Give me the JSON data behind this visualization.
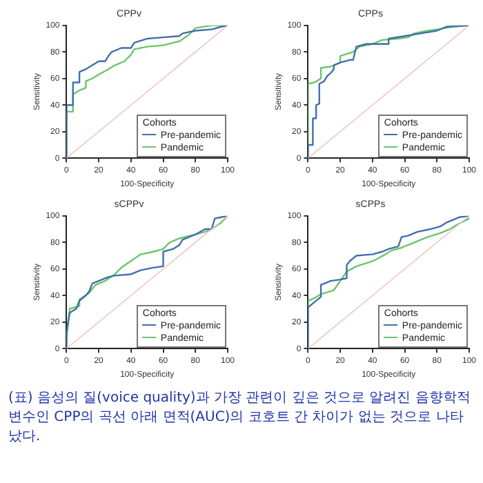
{
  "chart_data": [
    {
      "type": "line",
      "title": "CPPv",
      "xlabel": "100-Specificity",
      "ylabel": "Sensitivity",
      "xlim": [
        0,
        100
      ],
      "ylim": [
        0,
        100
      ],
      "xticks": [
        0,
        20,
        40,
        60,
        80,
        100
      ],
      "yticks": [
        0,
        20,
        40,
        60,
        80,
        100
      ],
      "grid": false,
      "legend": "bottom right",
      "legend_title": "Cohorts",
      "series": [
        {
          "type": "line",
          "color": "#f2c4c4",
          "x": [
            0,
            100
          ],
          "values": [
            0,
            100
          ]
        },
        {
          "name": "Pre-pandemic",
          "color": "#3f6fae",
          "x": [
            0,
            0,
            4,
            4,
            8,
            8,
            12,
            16,
            20,
            24,
            26,
            28,
            34,
            40,
            42,
            50,
            60,
            70,
            72,
            80,
            90,
            96,
            100
          ],
          "values": [
            0,
            40,
            40,
            57,
            57,
            65,
            67,
            70,
            73,
            73,
            77,
            80,
            83,
            83,
            87,
            90,
            91,
            92,
            94,
            96,
            97,
            99,
            100
          ]
        },
        {
          "name": "Pandemic",
          "color": "#6cc46c",
          "x": [
            0,
            0,
            4,
            4,
            8,
            12,
            12,
            16,
            20,
            26,
            30,
            36,
            40,
            42,
            50,
            60,
            70,
            76,
            80,
            90,
            100
          ],
          "values": [
            0,
            35,
            35,
            48,
            51,
            53,
            58,
            60,
            63,
            67,
            70,
            73,
            78,
            82,
            84,
            85,
            88,
            93,
            98,
            100,
            100
          ]
        }
      ]
    },
    {
      "type": "line",
      "title": "CPPs",
      "xlabel": "100-Specificity",
      "ylabel": "Sensitivity",
      "xlim": [
        0,
        100
      ],
      "ylim": [
        0,
        100
      ],
      "xticks": [
        0,
        20,
        40,
        60,
        80,
        100
      ],
      "yticks": [
        0,
        20,
        40,
        60,
        80,
        100
      ],
      "grid": false,
      "legend": "bottom right",
      "legend_title": "Cohorts",
      "series": [
        {
          "type": "line",
          "color": "#f2c4c4",
          "x": [
            0,
            100
          ],
          "values": [
            0,
            100
          ]
        },
        {
          "name": "Pre-pandemic",
          "color": "#3f6fae",
          "x": [
            0,
            0,
            3,
            3,
            5,
            5,
            7,
            7,
            10,
            12,
            14,
            16,
            16,
            20,
            26,
            28,
            30,
            36,
            50,
            50,
            60,
            70,
            80,
            86,
            100
          ],
          "values": [
            0,
            10,
            10,
            30,
            30,
            40,
            41,
            56,
            58,
            62,
            64,
            67,
            70,
            72,
            74,
            74,
            84,
            86,
            86,
            90,
            92,
            94,
            96,
            99,
            100
          ]
        },
        {
          "name": "Pandemic",
          "color": "#6cc46c",
          "x": [
            0,
            0,
            4,
            8,
            8,
            14,
            16,
            20,
            20,
            28,
            32,
            40,
            46,
            56,
            62,
            66,
            74,
            80,
            90,
            100
          ],
          "values": [
            0,
            56,
            57,
            60,
            68,
            69,
            70,
            72,
            77,
            80,
            84,
            86,
            89,
            90,
            91,
            94,
            96,
            97,
            99,
            100
          ]
        }
      ]
    },
    {
      "type": "line",
      "title": "sCPPv",
      "xlabel": "100-Specificity",
      "ylabel": "Sensitivity",
      "xlim": [
        0,
        100
      ],
      "ylim": [
        0,
        100
      ],
      "xticks": [
        0,
        20,
        40,
        60,
        80,
        100
      ],
      "yticks": [
        0,
        20,
        40,
        60,
        80,
        100
      ],
      "grid": false,
      "legend": "bottom right",
      "legend_title": "Cohorts",
      "series": [
        {
          "type": "line",
          "color": "#f2c4c4",
          "x": [
            0,
            100
          ],
          "values": [
            0,
            100
          ]
        },
        {
          "name": "Pre-pandemic",
          "color": "#3f6fae",
          "x": [
            0,
            0,
            2,
            6,
            8,
            12,
            14,
            16,
            20,
            26,
            30,
            40,
            46,
            54,
            60,
            60,
            66,
            70,
            72,
            80,
            86,
            90,
            92,
            96,
            100
          ],
          "values": [
            0,
            13,
            27,
            30,
            36,
            40,
            43,
            49,
            51,
            54,
            55,
            56,
            59,
            61,
            62,
            73,
            75,
            78,
            82,
            86,
            90,
            90,
            98,
            99,
            100
          ]
        },
        {
          "name": "Pandemic",
          "color": "#6cc46c",
          "x": [
            0,
            0,
            2,
            8,
            8,
            14,
            18,
            24,
            30,
            34,
            40,
            46,
            54,
            60,
            64,
            70,
            80,
            86,
            90,
            96,
            100
          ],
          "values": [
            0,
            8,
            30,
            32,
            37,
            42,
            48,
            51,
            56,
            61,
            66,
            71,
            73,
            75,
            80,
            83,
            86,
            88,
            90,
            95,
            100
          ]
        }
      ]
    },
    {
      "type": "line",
      "title": "sCPPs",
      "xlabel": "100-Specificity",
      "ylabel": "Sensitivity",
      "xlim": [
        0,
        100
      ],
      "ylim": [
        0,
        100
      ],
      "xticks": [
        0,
        20,
        40,
        60,
        80,
        100
      ],
      "yticks": [
        0,
        20,
        40,
        60,
        80,
        100
      ],
      "grid": false,
      "legend": "bottom right",
      "legend_title": "Cohorts",
      "annotations": [
        "(표) 음성의 질(voice quality)과 가장 관련이 깊은 것으로 알려진 음향학적 변수인 CPP의 곡선 아래 면적(AUC)의 코호트 간 차이가 없는 것으로 나타났다."
      ],
      "series": [
        {
          "type": "line",
          "color": "#f2c4c4",
          "x": [
            0,
            100
          ],
          "values": [
            0,
            100
          ]
        },
        {
          "name": "Pre-pandemic",
          "color": "#3f6fae",
          "x": [
            0,
            0,
            4,
            8,
            8,
            14,
            20,
            24,
            24,
            26,
            28,
            30,
            40,
            46,
            50,
            56,
            58,
            62,
            68,
            76,
            82,
            86,
            90,
            94,
            100
          ],
          "values": [
            0,
            31,
            35,
            39,
            48,
            51,
            52,
            53,
            63,
            66,
            68,
            70,
            71,
            73,
            75,
            77,
            84,
            85,
            88,
            90,
            92,
            95,
            97,
            99,
            100
          ]
        },
        {
          "name": "Pandemic",
          "color": "#6cc46c",
          "x": [
            0,
            0,
            4,
            8,
            16,
            20,
            24,
            30,
            38,
            42,
            48,
            52,
            58,
            66,
            74,
            82,
            88,
            92,
            100,
            100
          ],
          "values": [
            0,
            36,
            38,
            41,
            44,
            51,
            58,
            62,
            65,
            67,
            71,
            74,
            76,
            80,
            84,
            87,
            90,
            93,
            98,
            100
          ]
        }
      ]
    }
  ]
}
